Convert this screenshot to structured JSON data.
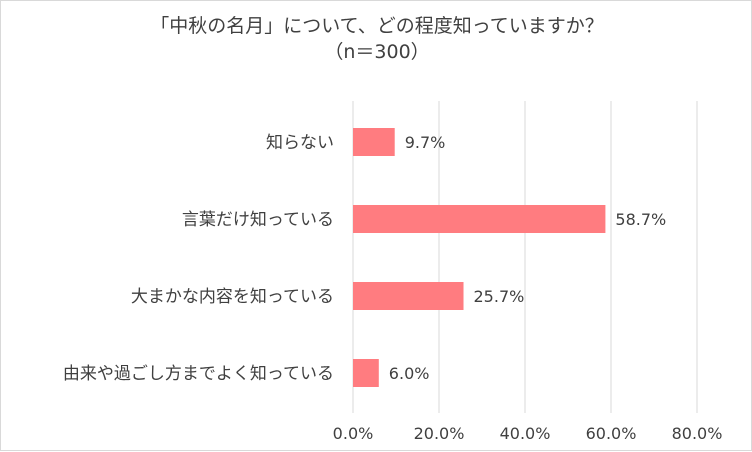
{
  "chart_data": {
    "type": "bar",
    "orientation": "horizontal",
    "title": "「中秋の名月」について、どの程度知っていますか？",
    "subtitle": "（n＝300）",
    "categories": [
      "知らない",
      "言葉だけ知っている",
      "大まかな内容を知っている",
      "由来や過ごし方までよく知っている"
    ],
    "values": [
      9.7,
      58.7,
      25.7,
      6.0
    ],
    "data_labels": [
      "9.7%",
      "58.7%",
      "25.7%",
      "6.0%"
    ],
    "x_ticks": [
      "0.0%",
      "20.0%",
      "40.0%",
      "60.0%",
      "80.0%"
    ],
    "xlim": [
      0,
      80
    ],
    "grid": true,
    "legend": "none",
    "colors": {
      "bar": "#ff7c80",
      "grid": "#d9d9d9",
      "text": "#404040"
    }
  }
}
